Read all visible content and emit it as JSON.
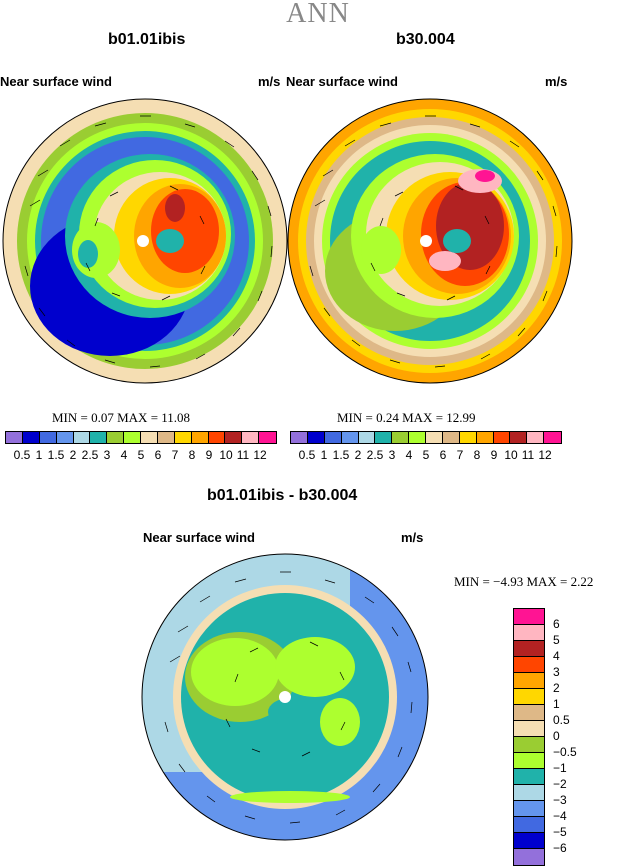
{
  "season": "ANN",
  "panels": {
    "left": {
      "case_title": "b01.01ibis",
      "field": "Near surface wind",
      "units": "m/s",
      "min_text": "MIN =    0.07  MAX =   11.08"
    },
    "right": {
      "case_title": "b30.004",
      "field": "Near surface wind",
      "units": "m/s",
      "min_text": "MIN =    0.24  MAX =   12.99"
    },
    "diff": {
      "case_title": "b01.01ibis - b30.004",
      "field": "Near surface wind",
      "units": "m/s",
      "min_text": "MIN =   −4.93  MAX =    2.22"
    }
  },
  "colorbar_top": {
    "colors": [
      "#9370DB",
      "#0000CD",
      "#4169E1",
      "#6495ED",
      "#ADD8E6",
      "#20B2AA",
      "#9ACD32",
      "#ADFF2F",
      "#F5DEB3",
      "#DEB887",
      "#FFD700",
      "#FFA500",
      "#FF4500",
      "#B22222",
      "#FFB6C1",
      "#FF1493"
    ],
    "labels": [
      "0.5",
      "1",
      "1.5",
      "2",
      "2.5",
      "3",
      "4",
      "5",
      "6",
      "7",
      "8",
      "9",
      "10",
      "11",
      "12"
    ]
  },
  "colorbar_diff": {
    "colors": [
      "#FF1493",
      "#FFB6C1",
      "#B22222",
      "#FF4500",
      "#FFA500",
      "#FFD700",
      "#DEB887",
      "#F5DEB3",
      "#9ACD32",
      "#ADFF2F",
      "#20B2AA",
      "#ADD8E6",
      "#6495ED",
      "#4169E1",
      "#0000CD",
      "#9370DB"
    ],
    "labels": [
      "6",
      "5",
      "4",
      "3",
      "2",
      "1",
      "0.5",
      "0",
      "−0.5",
      "−1",
      "−2",
      "−3",
      "−4",
      "−5",
      "−6"
    ]
  }
}
